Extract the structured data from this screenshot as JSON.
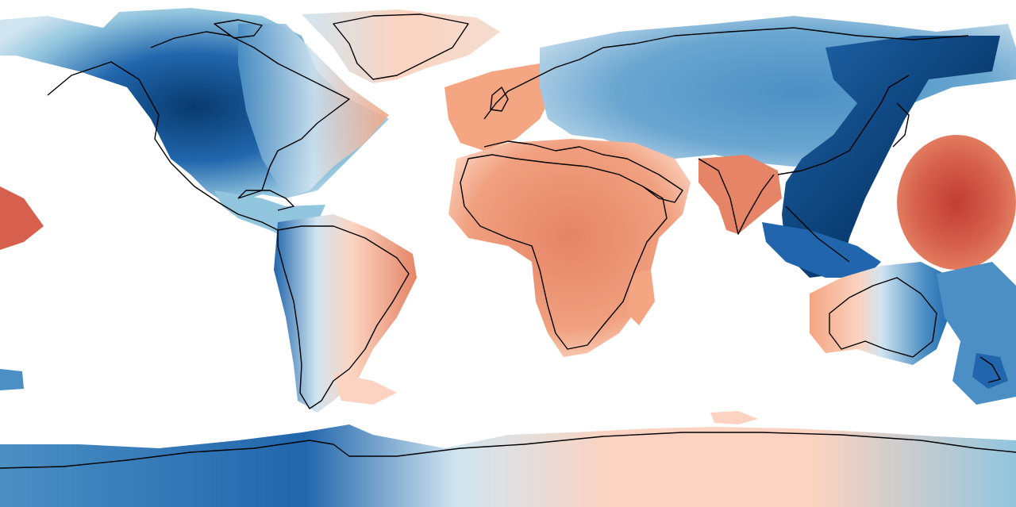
{
  "map": {
    "projection": "equirectangular",
    "extent": {
      "lon": [
        -180,
        180
      ],
      "lat": [
        -90,
        90
      ]
    },
    "features": [
      "coastlines",
      "filled-contours"
    ],
    "colormap": "RdBu diverging",
    "ocean_color": "#ffffff",
    "coastline_color": "#000000"
  },
  "palette": {
    "dark_blue": "#083a6e",
    "mid_blue": "#2166ac",
    "blue": "#4b8fc4",
    "light_blue": "#92c5de",
    "pale_blue": "#d1e5f0",
    "neutral": "#f4f1ef",
    "pale_red": "#fbd3c0",
    "light_red": "#f4a582",
    "mid_red": "#e58466",
    "red": "#d6604d",
    "dark_red": "#c23c33"
  },
  "regions": [
    {
      "name": "north-america",
      "tone": "blue"
    },
    {
      "name": "greenland",
      "tone": "red"
    },
    {
      "name": "north-atlantic-west",
      "tone": "red"
    },
    {
      "name": "south-america-east",
      "tone": "red"
    },
    {
      "name": "south-america-west",
      "tone": "blue"
    },
    {
      "name": "western-europe-atlantic",
      "tone": "red"
    },
    {
      "name": "africa",
      "tone": "red"
    },
    {
      "name": "eurasia",
      "tone": "blue"
    },
    {
      "name": "indian-subcontinent",
      "tone": "red"
    },
    {
      "name": "east-asia",
      "tone": "blue"
    },
    {
      "name": "west-pacific-tropics",
      "tone": "red"
    },
    {
      "name": "australia-west",
      "tone": "red"
    },
    {
      "name": "australia-east-oceania",
      "tone": "blue"
    },
    {
      "name": "antarctica-west",
      "tone": "blue"
    },
    {
      "name": "antarctica-east",
      "tone": "red"
    },
    {
      "name": "central-pacific-west-edge",
      "tone": "red"
    }
  ]
}
